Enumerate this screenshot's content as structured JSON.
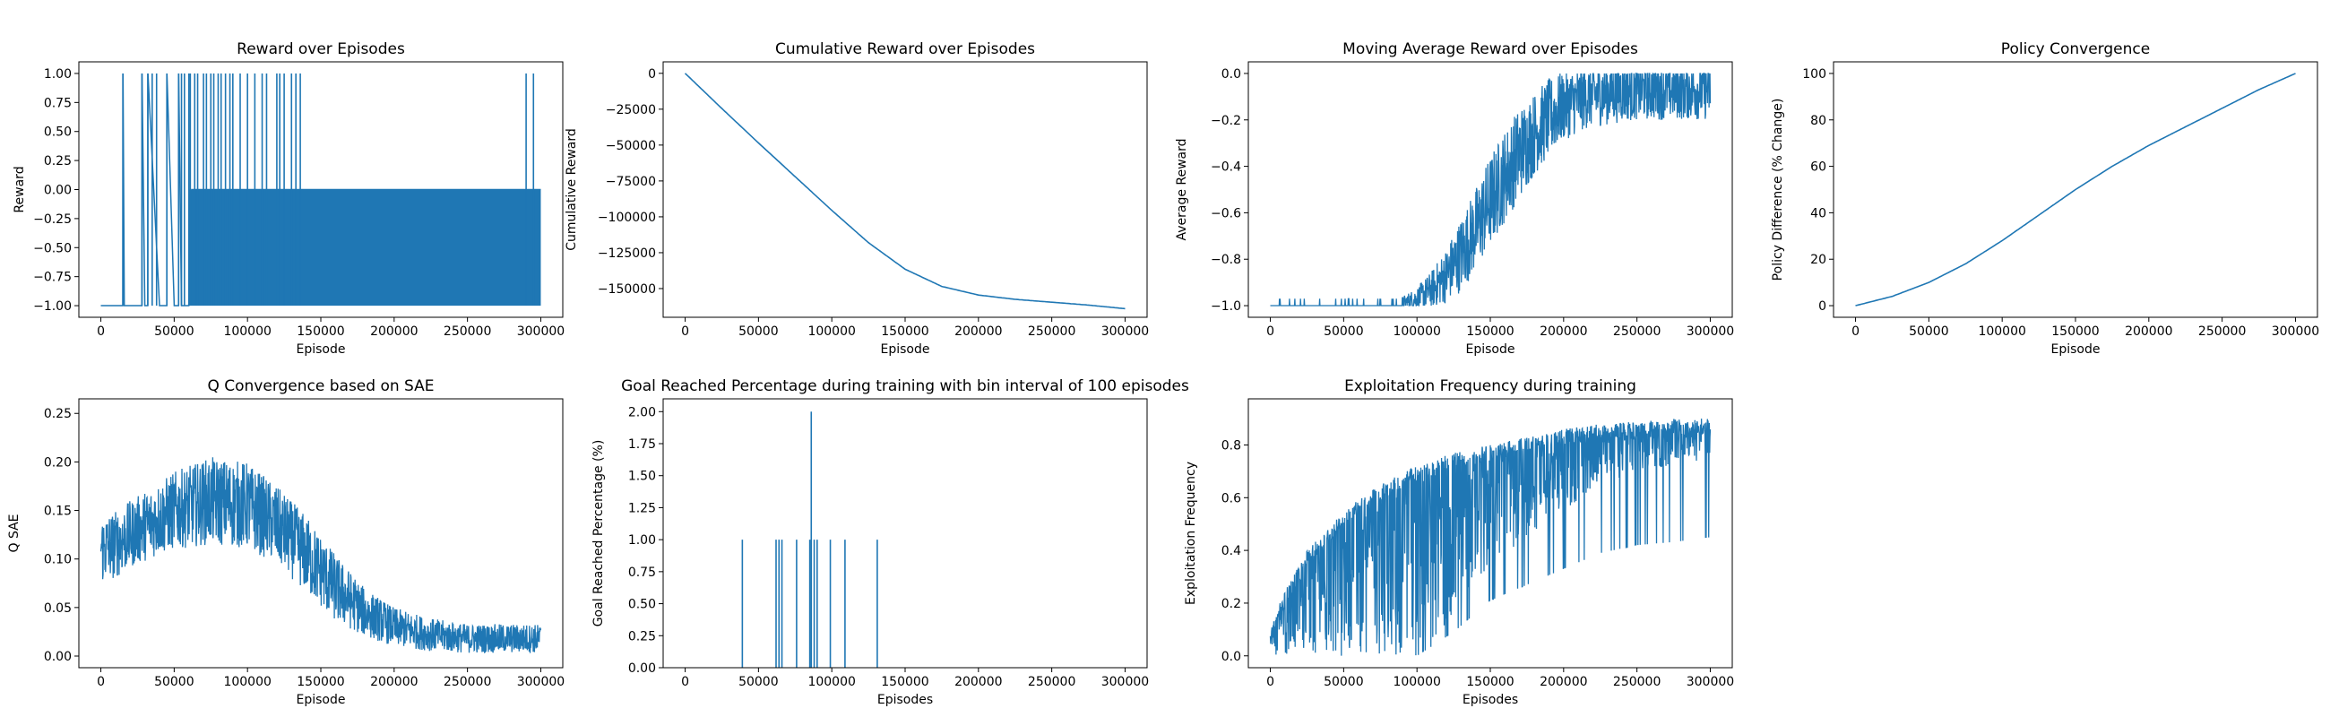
{
  "colors": {
    "series": "#1f77b4",
    "axis": "#000000",
    "background": "#ffffff"
  },
  "chart_data": [
    {
      "type": "line",
      "title": "Reward over Episodes",
      "xlabel": "Episode",
      "ylabel": "Reward",
      "xlim": [
        -15000,
        315000
      ],
      "ylim": [
        -1.1,
        1.1
      ],
      "xticks": [
        0,
        50000,
        100000,
        150000,
        200000,
        250000,
        300000
      ],
      "yticks": [
        -1.0,
        -0.75,
        -0.5,
        -0.25,
        0.0,
        0.25,
        0.5,
        0.75,
        1.0
      ],
      "ytick_labels": [
        "−1.00",
        "−0.75",
        "−0.50",
        "−0.25",
        "0.00",
        "0.25",
        "0.50",
        "0.75",
        "1.00"
      ],
      "grid": false,
      "description_shape": "dense oscillation",
      "series": [
        {
          "x": [
            0,
            15000,
            15100,
            16000,
            28000,
            28100,
            30000,
            32000,
            32100,
            40000,
            45000,
            45100,
            50000,
            53000,
            53100,
            55000,
            60000,
            62000,
            300000
          ],
          "y": [
            -1.0,
            -1.0,
            1.0,
            -1.0,
            -1.0,
            1.0,
            -1.0,
            -1.0,
            1.0,
            -1.0,
            -1.0,
            1.0,
            -1.0,
            -1.0,
            1.0,
            -1.0,
            -1.0,
            0.0,
            0.0
          ]
        }
      ],
      "spikes_up": [
        15000,
        28000,
        32000,
        35000,
        38000,
        45000,
        53000,
        55000,
        57000,
        60000,
        61000,
        64000,
        66000,
        70000,
        72000,
        75000,
        77000,
        80000,
        82000,
        85000,
        88000,
        90000,
        95000,
        100000,
        105000,
        110000,
        113000,
        120000,
        122000,
        125000,
        130000,
        133000,
        136000,
        290000,
        295000
      ],
      "band": {
        "x_start": 60000,
        "x_end": 300000,
        "y_low": -1.0,
        "y_high": 0.0
      }
    },
    {
      "type": "line",
      "title": "Cumulative Reward over Episodes",
      "xlabel": "Episode",
      "ylabel": "Cumulative Reward",
      "xlim": [
        -15000,
        315000
      ],
      "ylim": [
        -170000,
        8000
      ],
      "xticks": [
        0,
        50000,
        100000,
        150000,
        200000,
        250000,
        300000
      ],
      "yticks": [
        0,
        -25000,
        -50000,
        -75000,
        -100000,
        -125000,
        -150000
      ],
      "ytick_labels": [
        "0",
        "−25000",
        "−50000",
        "−75000",
        "−100000",
        "−125000",
        "−150000"
      ],
      "grid": false,
      "series": [
        {
          "x": [
            0,
            25000,
            50000,
            75000,
            100000,
            125000,
            150000,
            175000,
            200000,
            225000,
            250000,
            275000,
            300000
          ],
          "y": [
            0,
            -24500,
            -48500,
            -72000,
            -95500,
            -118000,
            -136500,
            -148500,
            -154500,
            -157500,
            -159500,
            -161500,
            -164000
          ]
        }
      ]
    },
    {
      "type": "line",
      "title": "Moving Average Reward over Episodes",
      "xlabel": "Episode",
      "ylabel": "Average Reward",
      "xlim": [
        -15000,
        315000
      ],
      "ylim": [
        -1.05,
        0.05
      ],
      "xticks": [
        0,
        50000,
        100000,
        150000,
        200000,
        250000,
        300000
      ],
      "yticks": [
        0.0,
        -0.2,
        -0.4,
        -0.6,
        -0.8,
        -1.0
      ],
      "ytick_labels": [
        "0.0",
        "−0.2",
        "−0.4",
        "−0.6",
        "−0.8",
        "−1.0"
      ],
      "grid": false,
      "series": [
        {
          "x": [
            0,
            50000,
            90000,
            100000,
            110000,
            120000,
            130000,
            140000,
            150000,
            160000,
            170000,
            180000,
            190000,
            200000,
            215000,
            230000,
            250000,
            270000,
            300000
          ],
          "y": [
            -1.0,
            -1.0,
            -0.99,
            -0.97,
            -0.93,
            -0.87,
            -0.78,
            -0.67,
            -0.55,
            -0.44,
            -0.34,
            -0.26,
            -0.19,
            -0.14,
            -0.1,
            -0.08,
            -0.07,
            -0.07,
            -0.07
          ]
        }
      ],
      "noise_amplitude": [
        0.0,
        0.0,
        0.03,
        0.05,
        0.08,
        0.12,
        0.16,
        0.18,
        0.2,
        0.2,
        0.2,
        0.18,
        0.17,
        0.15,
        0.14,
        0.14,
        0.13,
        0.13,
        0.13
      ]
    },
    {
      "type": "line",
      "title": "Policy Convergence",
      "xlabel": "Episode",
      "ylabel": "Policy Difference (% Change)",
      "xlim": [
        -15000,
        315000
      ],
      "ylim": [
        -5,
        105
      ],
      "xticks": [
        0,
        50000,
        100000,
        150000,
        200000,
        250000,
        300000
      ],
      "yticks": [
        0,
        20,
        40,
        60,
        80,
        100
      ],
      "ytick_labels": [
        "0",
        "20",
        "40",
        "60",
        "80",
        "100"
      ],
      "grid": false,
      "series": [
        {
          "x": [
            0,
            25000,
            50000,
            75000,
            100000,
            125000,
            150000,
            175000,
            200000,
            225000,
            250000,
            275000,
            300000
          ],
          "y": [
            0,
            4,
            10,
            18,
            28,
            39,
            50,
            60,
            69,
            77,
            85,
            93,
            100
          ]
        }
      ]
    },
    {
      "type": "line",
      "title": "Q Convergence based on SAE",
      "xlabel": "Episode",
      "ylabel": "Q SAE",
      "xlim": [
        -15000,
        315000
      ],
      "ylim": [
        -0.012,
        0.265
      ],
      "xticks": [
        0,
        50000,
        100000,
        150000,
        200000,
        250000,
        300000
      ],
      "yticks": [
        0.0,
        0.05,
        0.1,
        0.15,
        0.2,
        0.25
      ],
      "ytick_labels": [
        "0.00",
        "0.05",
        "0.10",
        "0.15",
        "0.20",
        "0.25"
      ],
      "grid": false,
      "series": [
        {
          "x": [
            0,
            10000,
            25000,
            50000,
            75000,
            100000,
            120000,
            140000,
            160000,
            180000,
            200000,
            225000,
            250000,
            275000,
            300000
          ],
          "y": [
            0.11,
            0.115,
            0.13,
            0.15,
            0.16,
            0.155,
            0.135,
            0.105,
            0.07,
            0.045,
            0.03,
            0.022,
            0.018,
            0.018,
            0.018
          ]
        }
      ],
      "noise_amplitude": [
        0.035,
        0.035,
        0.035,
        0.04,
        0.045,
        0.045,
        0.04,
        0.04,
        0.035,
        0.025,
        0.02,
        0.017,
        0.015,
        0.015,
        0.015
      ]
    },
    {
      "type": "bar",
      "title": "Goal Reached Percentage during training with bin interval of 100 episodes",
      "xlabel": "Episodes",
      "ylabel": "Goal Reached Percentage (%)",
      "xlim": [
        -15000,
        315000
      ],
      "ylim": [
        0,
        2.1
      ],
      "xticks": [
        0,
        50000,
        100000,
        150000,
        200000,
        250000,
        300000
      ],
      "yticks": [
        0.0,
        0.25,
        0.5,
        0.75,
        1.0,
        1.25,
        1.5,
        1.75,
        2.0
      ],
      "ytick_labels": [
        "0.00",
        "0.25",
        "0.50",
        "0.75",
        "1.00",
        "1.25",
        "1.50",
        "1.75",
        "2.00"
      ],
      "grid": false,
      "bars": [
        {
          "x": 39000,
          "y": 1.0
        },
        {
          "x": 62000,
          "y": 1.0
        },
        {
          "x": 64000,
          "y": 1.0
        },
        {
          "x": 66000,
          "y": 1.0
        },
        {
          "x": 76000,
          "y": 1.0
        },
        {
          "x": 85000,
          "y": 1.0
        },
        {
          "x": 86000,
          "y": 2.0
        },
        {
          "x": 88000,
          "y": 1.0
        },
        {
          "x": 90000,
          "y": 1.0
        },
        {
          "x": 99000,
          "y": 1.0
        },
        {
          "x": 109000,
          "y": 1.0
        },
        {
          "x": 131000,
          "y": 1.0
        }
      ]
    },
    {
      "type": "line",
      "title": "Exploitation Frequency during training",
      "xlabel": "Episodes",
      "ylabel": "Exploitation Frequency",
      "xlim": [
        -15000,
        315000
      ],
      "ylim": [
        -0.045,
        0.975
      ],
      "xticks": [
        0,
        50000,
        100000,
        150000,
        200000,
        250000,
        300000
      ],
      "yticks": [
        0.0,
        0.2,
        0.4,
        0.6,
        0.8
      ],
      "ytick_labels": [
        "0.0",
        "0.2",
        "0.4",
        "0.6",
        "0.8"
      ],
      "grid": false,
      "series": [
        {
          "x": [
            0,
            10000,
            25000,
            50000,
            75000,
            100000,
            125000,
            150000,
            175000,
            200000,
            225000,
            250000,
            275000,
            300000
          ],
          "y": [
            0.1,
            0.25,
            0.4,
            0.55,
            0.65,
            0.72,
            0.77,
            0.8,
            0.83,
            0.86,
            0.88,
            0.89,
            0.9,
            0.9
          ]
        }
      ],
      "lower_envelope": [
        0.0,
        0.0,
        0.0,
        0.0,
        0.0,
        0.0,
        0.15,
        0.35,
        0.45,
        0.55,
        0.65,
        0.7,
        0.72,
        0.75
      ]
    }
  ]
}
